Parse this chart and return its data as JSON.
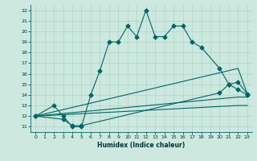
{
  "xlabel": "Humidex (Indice chaleur)",
  "bg_color": "#cde8df",
  "grid_color": "#b0d4c8",
  "line_color": "#006666",
  "xlim": [
    -0.5,
    23.5
  ],
  "ylim": [
    10.5,
    22.5
  ],
  "xticks": [
    0,
    1,
    2,
    3,
    4,
    5,
    6,
    7,
    8,
    9,
    10,
    11,
    12,
    13,
    14,
    15,
    16,
    17,
    18,
    19,
    20,
    21,
    22,
    23
  ],
  "yticks": [
    11,
    12,
    13,
    14,
    15,
    16,
    17,
    18,
    19,
    20,
    21,
    22
  ],
  "curve1_x": [
    0,
    2,
    3,
    4,
    5,
    6,
    7,
    8,
    9,
    10,
    11,
    12,
    13,
    14,
    15,
    16,
    17,
    18,
    20,
    21,
    22,
    23
  ],
  "curve1_y": [
    12,
    13,
    12,
    11,
    11,
    14,
    16.3,
    19,
    19,
    20.5,
    19.5,
    22,
    19.5,
    19.5,
    20.5,
    20.5,
    19,
    18.5,
    16.5,
    15,
    14.5,
    14
  ],
  "curve2_x": [
    0,
    3,
    4,
    5,
    20,
    21,
    22,
    23
  ],
  "curve2_y": [
    12,
    11.7,
    11.1,
    11.1,
    14.2,
    15.0,
    15.2,
    14.1
  ],
  "curve3_x": [
    0,
    22,
    23
  ],
  "curve3_y": [
    12,
    16.5,
    14.1
  ],
  "curve4_x": [
    0,
    22,
    23
  ],
  "curve4_y": [
    12,
    13.8,
    13.8
  ],
  "curve5_x": [
    0,
    22,
    23
  ],
  "curve5_y": [
    12,
    13.0,
    13.0
  ]
}
